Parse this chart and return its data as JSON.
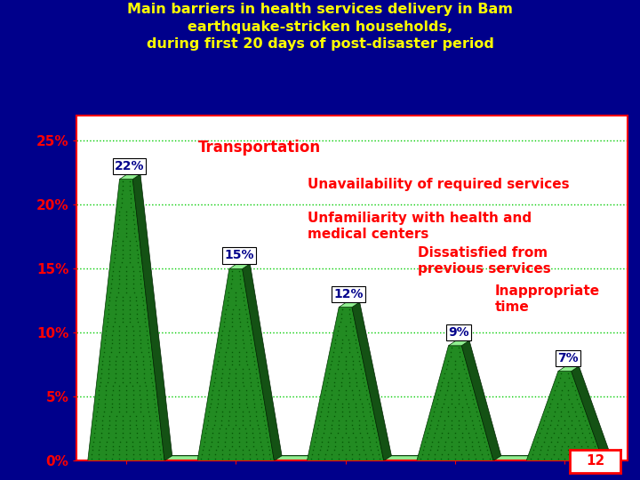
{
  "title": "Main barriers in health services delivery in Bam\nearthquake-stricken households,\nduring first 20 days of post-disaster period",
  "title_color": "#FFFF00",
  "background_color": "#00008B",
  "plot_bg_color": "#FFFFFF",
  "values": [
    22,
    15,
    12,
    9,
    7
  ],
  "labels": [
    "22%",
    "15%",
    "12%",
    "9%",
    "7%"
  ],
  "bar_face_color": "#228B22",
  "bar_dark_color": "#145214",
  "bar_light_color": "#90EE90",
  "floor_color": "#90EE90",
  "yticks": [
    0,
    5,
    10,
    15,
    20,
    25
  ],
  "ylim": [
    0,
    27
  ],
  "grid_color": "#00CC00",
  "tick_color": "#FF0000",
  "label_color": "#00008B",
  "label_fontsize": 10,
  "annotation_color": "#FF0000",
  "annotation_fontsize": 11,
  "slide_number": "12",
  "slide_num_color": "#FF0000",
  "slide_bg_color": "#FFFFFF",
  "ann_transportation": "Transportation",
  "ann_unavail": "Unavailability of required services",
  "ann_unfamil": "Unfamiliarity with health and\nmedical centers",
  "ann_dissatisfied": "Dissatisfied from\nprevious services",
  "ann_inappropriate": "Inappropriate\ntime"
}
